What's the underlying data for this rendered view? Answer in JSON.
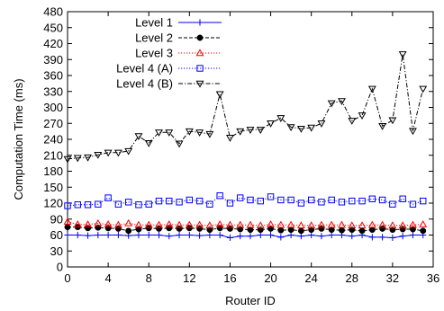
{
  "chart_data": {
    "type": "line",
    "xlabel": "Router ID",
    "ylabel": "Computation Time (ms)",
    "xlim": [
      0,
      36
    ],
    "ylim": [
      0,
      480
    ],
    "xticks": [
      0,
      4,
      8,
      12,
      16,
      20,
      24,
      28,
      32,
      36
    ],
    "yticks": [
      0,
      30,
      60,
      90,
      120,
      150,
      180,
      210,
      240,
      270,
      300,
      330,
      360,
      390,
      420,
      450,
      480
    ],
    "grid": false,
    "legend_position": "top-center",
    "x": [
      0,
      1,
      2,
      3,
      4,
      5,
      6,
      7,
      8,
      9,
      10,
      11,
      12,
      13,
      14,
      15,
      16,
      17,
      18,
      19,
      20,
      21,
      22,
      23,
      24,
      25,
      26,
      27,
      28,
      29,
      30,
      31,
      32,
      33,
      34,
      35
    ],
    "series": [
      {
        "name": "Level 1",
        "color": "#0000ff",
        "dash": "solid",
        "marker": "plus",
        "values": [
          60,
          60,
          59,
          60,
          60,
          60,
          59,
          60,
          60,
          60,
          58,
          60,
          60,
          59,
          60,
          60,
          55,
          58,
          58,
          60,
          60,
          56,
          60,
          58,
          60,
          58,
          60,
          60,
          58,
          60,
          56,
          56,
          55,
          58,
          60,
          60
        ]
      },
      {
        "name": "Level 2",
        "color": "#000000",
        "dash": "dashed",
        "marker": "filled-circle",
        "values": [
          75,
          75,
          73,
          74,
          73,
          72,
          68,
          71,
          73,
          72,
          73,
          72,
          73,
          72,
          70,
          73,
          72,
          71,
          70,
          70,
          72,
          69,
          70,
          68,
          70,
          72,
          70,
          69,
          70,
          68,
          70,
          72,
          70,
          71,
          71,
          68
        ]
      },
      {
        "name": "Level 3",
        "color": "#ff0000",
        "dash": "dotted",
        "marker": "triangle-up",
        "values": [
          85,
          80,
          80,
          82,
          80,
          79,
          82,
          79,
          79,
          79,
          80,
          79,
          79,
          79,
          78,
          80,
          79,
          79,
          79,
          78,
          80,
          79,
          79,
          78,
          78,
          79,
          79,
          79,
          78,
          78,
          79,
          79,
          78,
          78,
          79,
          80
        ]
      },
      {
        "name": "Level 4 (A)",
        "color": "#0000ff",
        "dash": "dotted",
        "marker": "square",
        "values": [
          115,
          117,
          117,
          118,
          130,
          118,
          122,
          117,
          118,
          124,
          124,
          122,
          126,
          124,
          118,
          134,
          120,
          130,
          126,
          124,
          132,
          126,
          126,
          120,
          126,
          122,
          126,
          122,
          124,
          124,
          128,
          126,
          118,
          128,
          118,
          124
        ]
      },
      {
        "name": "Level 4 (B)",
        "color": "#000000",
        "dash": "dashdot",
        "marker": "triangle-down",
        "values": [
          203,
          205,
          206,
          211,
          215,
          215,
          218,
          246,
          233,
          253,
          253,
          232,
          255,
          253,
          250,
          325,
          243,
          255,
          258,
          258,
          270,
          280,
          263,
          260,
          262,
          270,
          308,
          312,
          275,
          285,
          335,
          265,
          276,
          400,
          256,
          335
        ]
      }
    ]
  }
}
